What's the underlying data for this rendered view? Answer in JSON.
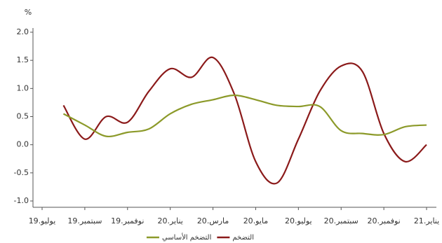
{
  "chart_data": {
    "type": "line",
    "y_label": "%",
    "categories": [
      "يوليو.19",
      null,
      "سبتمبر.19",
      null,
      "نوفمبر.19",
      null,
      "يناير.20",
      null,
      "مارس.20",
      null,
      "مايو.20",
      null,
      "يوليو.20",
      null,
      "سبتمبر.20",
      null,
      "نوفمبر.20",
      null,
      "يناير.21"
    ],
    "series": [
      {
        "name": "التضخم",
        "color": "#8b1a1a",
        "values": [
          null,
          0.7,
          0.1,
          0.5,
          0.4,
          0.95,
          1.35,
          1.2,
          1.55,
          0.9,
          -0.3,
          -0.68,
          0.1,
          0.95,
          1.4,
          1.3,
          0.2,
          -0.3,
          0.0
        ]
      },
      {
        "name": "التضخم الأساسي",
        "color": "#8c9a2a",
        "values": [
          null,
          0.55,
          0.35,
          0.15,
          0.22,
          0.28,
          0.55,
          0.72,
          0.8,
          0.88,
          0.8,
          0.7,
          0.68,
          0.68,
          0.25,
          0.2,
          0.18,
          0.32,
          0.35
        ]
      }
    ],
    "ylim": [
      -1.0,
      2.0
    ],
    "yticks": [
      {
        "value": -1.0,
        "label": "-1.0"
      },
      {
        "value": -0.5,
        "label": "-0.5"
      },
      {
        "value": 0.0,
        "label": "0.0"
      },
      {
        "value": 0.5,
        "label": "0.5"
      },
      {
        "value": 1.0,
        "label": "1.0"
      },
      {
        "value": 1.5,
        "label": "1.5"
      },
      {
        "value": 2.0,
        "label": "2.0"
      }
    ],
    "grid": false
  }
}
